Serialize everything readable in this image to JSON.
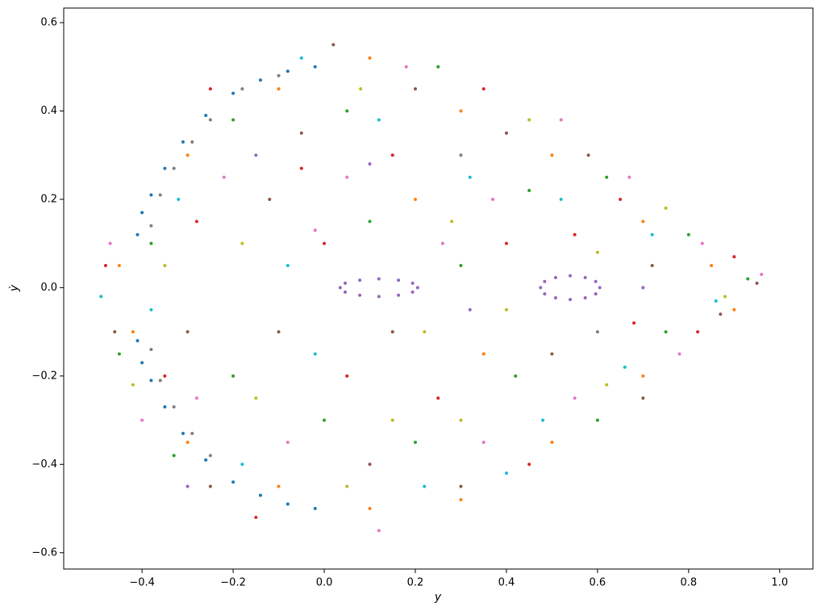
{
  "chart_data": {
    "type": "scatter",
    "xlabel": "y",
    "ylabel": "ẏ",
    "xlim": [
      -0.572,
      1.073
    ],
    "ylim": [
      -0.637,
      0.633
    ],
    "xticks": [
      {
        "value": -0.4,
        "label": "−0.4"
      },
      {
        "value": -0.2,
        "label": "−0.2"
      },
      {
        "value": 0.0,
        "label": "0.0"
      },
      0.2,
      0.4,
      0.6,
      0.8,
      {
        "value": 1.0,
        "label": "1.0"
      }
    ],
    "yticks": [
      {
        "value": -0.6,
        "label": "−0.6"
      },
      {
        "value": -0.4,
        "label": "−0.4"
      },
      {
        "value": -0.2,
        "label": "−0.2"
      },
      {
        "value": 0.0,
        "label": "0.0"
      },
      0.2,
      0.4,
      0.6
    ],
    "series": [
      {
        "color": "#1f77b4",
        "x": [
          -0.02,
          -0.08,
          -0.14,
          -0.2,
          -0.26,
          -0.31,
          -0.35,
          -0.38,
          -0.4,
          -0.41,
          -0.41,
          -0.4,
          -0.38,
          -0.35,
          -0.31,
          -0.26,
          -0.2,
          -0.14,
          -0.08,
          -0.02
        ],
        "values": [
          0.5,
          0.49,
          0.47,
          0.44,
          0.39,
          0.33,
          0.27,
          0.21,
          0.17,
          0.12,
          -0.12,
          -0.17,
          -0.21,
          -0.27,
          -0.33,
          -0.39,
          -0.44,
          -0.47,
          -0.49,
          -0.5
        ]
      },
      {
        "color": "#ff7f0e",
        "x": [
          -0.45,
          -0.3,
          -0.1,
          0.1,
          0.3,
          0.5,
          0.7,
          0.85,
          0.9,
          0.7,
          0.5,
          0.3,
          0.1,
          -0.1,
          -0.3,
          -0.42,
          0.2,
          0.35
        ],
        "values": [
          0.05,
          0.3,
          0.45,
          0.52,
          0.4,
          0.3,
          0.15,
          0.05,
          -0.05,
          -0.2,
          -0.35,
          -0.48,
          -0.5,
          -0.45,
          -0.35,
          -0.1,
          0.2,
          -0.15
        ]
      },
      {
        "color": "#2ca02c",
        "x": [
          -0.38,
          -0.2,
          0.05,
          0.25,
          0.45,
          0.62,
          0.8,
          0.93,
          0.75,
          0.6,
          0.42,
          0.2,
          0.0,
          -0.2,
          -0.33,
          -0.45,
          0.1,
          0.3
        ],
        "values": [
          0.1,
          0.38,
          0.4,
          0.5,
          0.22,
          0.25,
          0.12,
          0.02,
          -0.1,
          -0.3,
          -0.2,
          -0.35,
          -0.3,
          -0.2,
          -0.38,
          -0.15,
          0.15,
          0.05
        ]
      },
      {
        "color": "#d62728",
        "x": [
          -0.48,
          -0.28,
          -0.05,
          0.15,
          0.35,
          0.55,
          0.68,
          0.82,
          0.65,
          0.45,
          0.25,
          0.05,
          -0.15,
          -0.35,
          -0.25,
          0.4,
          0.0,
          0.9
        ],
        "values": [
          0.05,
          0.15,
          0.27,
          0.3,
          0.45,
          0.12,
          -0.08,
          -0.1,
          0.2,
          -0.4,
          -0.25,
          -0.2,
          -0.52,
          -0.2,
          0.45,
          0.1,
          0.1,
          0.07
        ]
      },
      {
        "color": "#9467bd",
        "x": [
          0.205,
          0.194,
          0.163,
          0.12,
          0.078,
          0.046,
          0.035,
          0.046,
          0.078,
          0.12,
          0.163,
          0.194,
          0.605,
          0.596,
          0.573,
          0.54,
          0.508,
          0.484,
          0.475,
          0.484,
          0.508,
          0.54,
          0.573,
          0.596,
          -0.15,
          0.32,
          0.7,
          -0.3,
          0.1
        ],
        "values": [
          0.0,
          0.01,
          0.017,
          0.02,
          0.017,
          0.01,
          0.0,
          -0.01,
          -0.017,
          -0.02,
          -0.017,
          -0.01,
          0.0,
          0.014,
          0.023,
          0.027,
          0.023,
          0.014,
          0.0,
          -0.014,
          -0.023,
          -0.027,
          -0.023,
          -0.014,
          0.3,
          -0.05,
          0.0,
          -0.45,
          0.28
        ]
      },
      {
        "color": "#8c564b",
        "x": [
          -0.46,
          -0.3,
          -0.12,
          0.02,
          0.2,
          0.4,
          0.58,
          0.72,
          0.87,
          0.95,
          0.7,
          0.5,
          0.3,
          0.1,
          -0.1,
          -0.25,
          -0.05,
          0.15
        ],
        "values": [
          -0.1,
          -0.1,
          0.2,
          0.55,
          0.45,
          0.35,
          0.3,
          0.05,
          -0.06,
          0.01,
          -0.25,
          -0.15,
          -0.45,
          -0.4,
          -0.1,
          -0.45,
          0.35,
          -0.1
        ]
      },
      {
        "color": "#e377c2",
        "x": [
          -0.4,
          -0.22,
          -0.02,
          0.18,
          0.37,
          0.52,
          0.67,
          0.83,
          0.96,
          0.78,
          0.55,
          0.35,
          0.12,
          -0.08,
          -0.28,
          -0.47,
          0.26,
          0.05
        ],
        "values": [
          -0.3,
          0.25,
          0.13,
          0.5,
          0.2,
          0.38,
          0.25,
          0.1,
          0.03,
          -0.15,
          -0.25,
          -0.35,
          -0.55,
          -0.35,
          -0.25,
          0.1,
          0.1,
          0.25
        ]
      },
      {
        "color": "#7f7f7f",
        "x": [
          -0.25,
          -0.29,
          -0.33,
          -0.36,
          -0.38,
          -0.38,
          -0.36,
          -0.33,
          -0.29,
          -0.25,
          -0.18,
          -0.1,
          0.3,
          0.6
        ],
        "values": [
          0.38,
          0.33,
          0.27,
          0.21,
          0.14,
          -0.14,
          -0.21,
          -0.27,
          -0.33,
          -0.38,
          0.45,
          0.48,
          0.3,
          -0.1
        ]
      },
      {
        "color": "#bcbd22",
        "x": [
          -0.35,
          -0.15,
          0.05,
          0.22,
          0.4,
          0.6,
          0.75,
          0.45,
          0.28,
          0.08,
          -0.18,
          -0.42,
          0.15,
          0.62,
          0.88,
          0.3
        ],
        "values": [
          0.05,
          -0.25,
          -0.45,
          -0.1,
          -0.05,
          0.08,
          0.18,
          0.38,
          0.15,
          0.45,
          0.1,
          -0.22,
          -0.3,
          -0.22,
          -0.02,
          -0.3
        ]
      },
      {
        "color": "#17becf",
        "x": [
          -0.49,
          -0.32,
          -0.08,
          0.12,
          0.32,
          0.52,
          0.72,
          0.86,
          0.66,
          0.48,
          0.22,
          -0.02,
          -0.18,
          -0.38,
          -0.05,
          0.4
        ],
        "values": [
          -0.02,
          0.2,
          0.05,
          0.38,
          0.25,
          0.2,
          0.12,
          -0.03,
          -0.18,
          -0.3,
          -0.45,
          -0.15,
          -0.4,
          -0.05,
          0.52,
          -0.42
        ]
      }
    ]
  }
}
